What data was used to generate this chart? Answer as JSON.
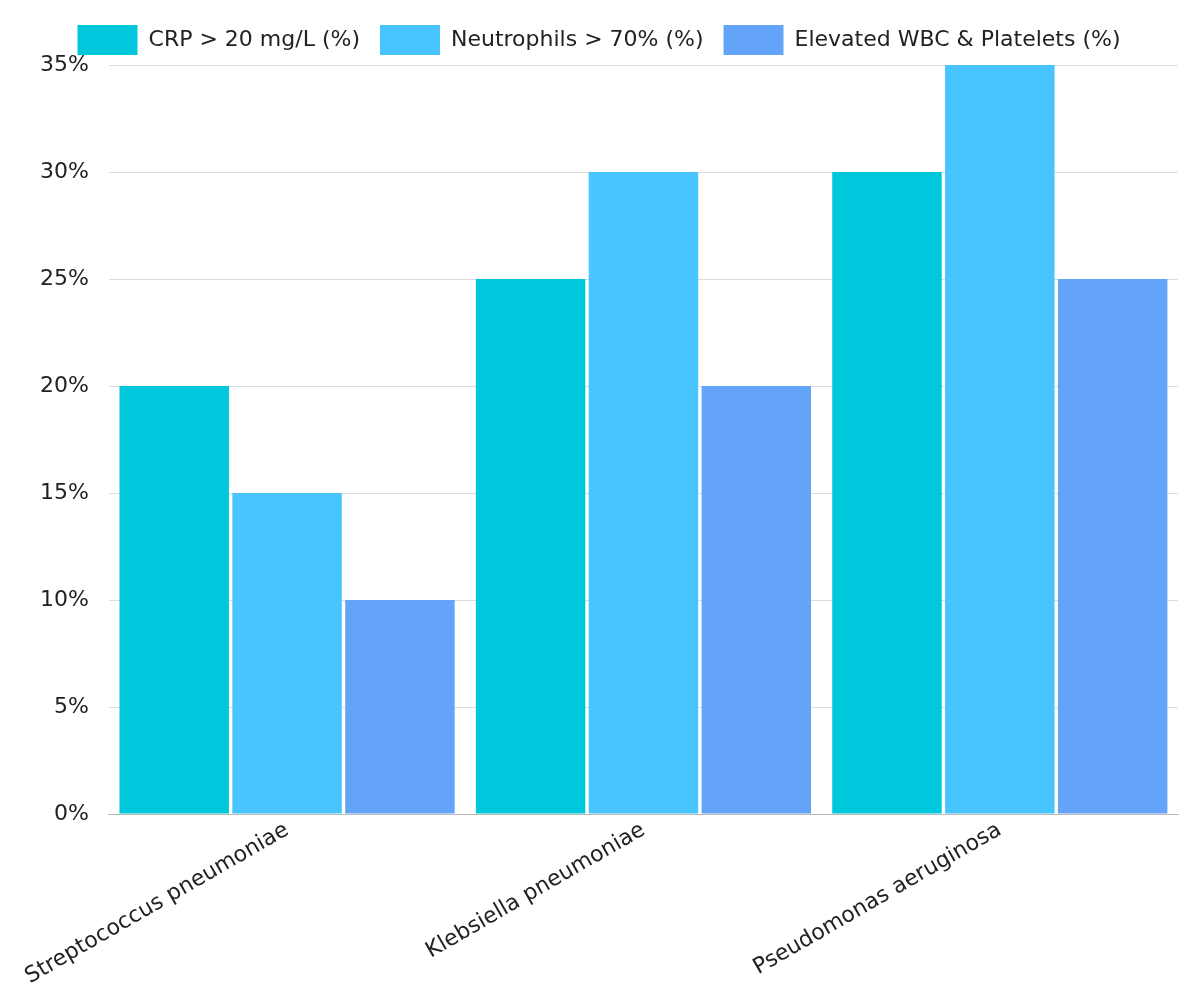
{
  "chart_data": {
    "type": "bar",
    "categories": [
      "Streptococcus pneumoniae",
      "Klebsiella pneumoniae",
      "Pseudomonas aeruginosa"
    ],
    "series": [
      {
        "name": "CRP > 20 mg/L (%)",
        "color": "#00c8dc",
        "values": [
          20,
          25,
          30
        ]
      },
      {
        "name": "Neutrophils > 70% (%)",
        "color": "#48c4ff",
        "values": [
          15,
          30,
          35
        ]
      },
      {
        "name": "Elevated WBC & Platelets (%)",
        "color": "#64a4f8",
        "values": [
          10,
          20,
          25
        ]
      }
    ],
    "ylim": [
      0,
      35
    ],
    "yticks": [
      {
        "value": 0,
        "label": "0%"
      },
      {
        "value": 5,
        "label": "5%"
      },
      {
        "value": 10,
        "label": "10%"
      },
      {
        "value": 15,
        "label": "15%"
      },
      {
        "value": 20,
        "label": "20%"
      },
      {
        "value": 25,
        "label": "25%"
      },
      {
        "value": 30,
        "label": "30%"
      },
      {
        "value": 35,
        "label": "35%"
      }
    ],
    "grid": "y",
    "legend": "top"
  }
}
